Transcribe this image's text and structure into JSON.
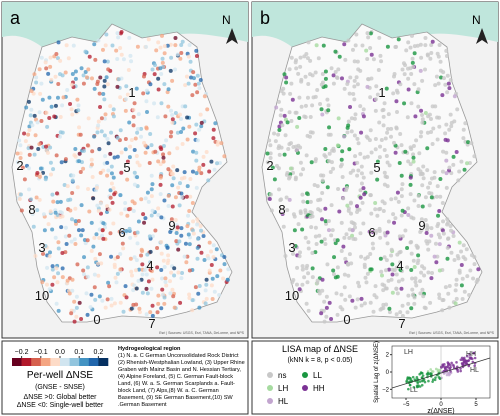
{
  "panels": [
    {
      "label": "a"
    },
    {
      "label": "b"
    }
  ],
  "north": "N",
  "regions": [
    "1",
    "2",
    "3",
    "4",
    "5",
    "6",
    "7",
    "8",
    "9",
    "10",
    "0"
  ],
  "attribution": "Esri | Sources: USGS, Esri, TANA, DeLorme, and NPS",
  "colorbar": {
    "lim": [
      -0.25,
      0.25
    ],
    "ticks": [
      {
        "value": -0.2,
        "label": "−0.2"
      },
      {
        "value": -0.1,
        "label": "−0.1"
      },
      {
        "value": 0,
        "label": "0.0"
      },
      {
        "value": 0.1,
        "label": "0.1"
      },
      {
        "value": 0.2,
        "label": "0.2"
      }
    ],
    "title": "Per-well ΔNSE",
    "formula": "(GNSE - SNSE)",
    "notes": [
      "ΔNSE >0: Global better",
      "ΔNSE <0: Single-well better"
    ]
  },
  "hydro": {
    "title": "Hydrogeological region",
    "text": "(1) N. a. C German Unconsolidated Rock District (2) Rhenish-Westphalian Lowland, (3) Upper Rhine Graben with Mainz Basin and N. Hessian Tertiary, (4) Alpine Foreland, (5) C. German Fault-block Land, (6) W. a. S. German Scarplands a. Fault-block Land, (7) Alps,(8) W. a. C. German Basement, (9) SE German Basement,(10) SW .German Basement"
  },
  "lisa": {
    "title": "LISA map of ΔNSE",
    "subtitle": "(kNN k = 8, p < 0.05)",
    "classes": [
      {
        "name": "ns",
        "color": "#c8c8c8"
      },
      {
        "name": "LL",
        "color": "#1a9641"
      },
      {
        "name": "LH",
        "color": "#a6dba0"
      },
      {
        "name": "HH",
        "color": "#7b3294"
      },
      {
        "name": "HL",
        "color": "#c2a5cf"
      }
    ]
  },
  "scatter": {
    "xlabel": "z(ΔNSE)",
    "ylabel": "Spatial Lag of z(ΔNSE)",
    "xlim": [
      -7,
      7
    ],
    "ylim": [
      -3,
      3
    ],
    "xticks": [
      {
        "value": -5,
        "label": "−5"
      },
      0,
      5
    ],
    "yticks": [
      {
        "value": -2,
        "label": "−2"
      },
      0,
      2
    ]
  }
}
